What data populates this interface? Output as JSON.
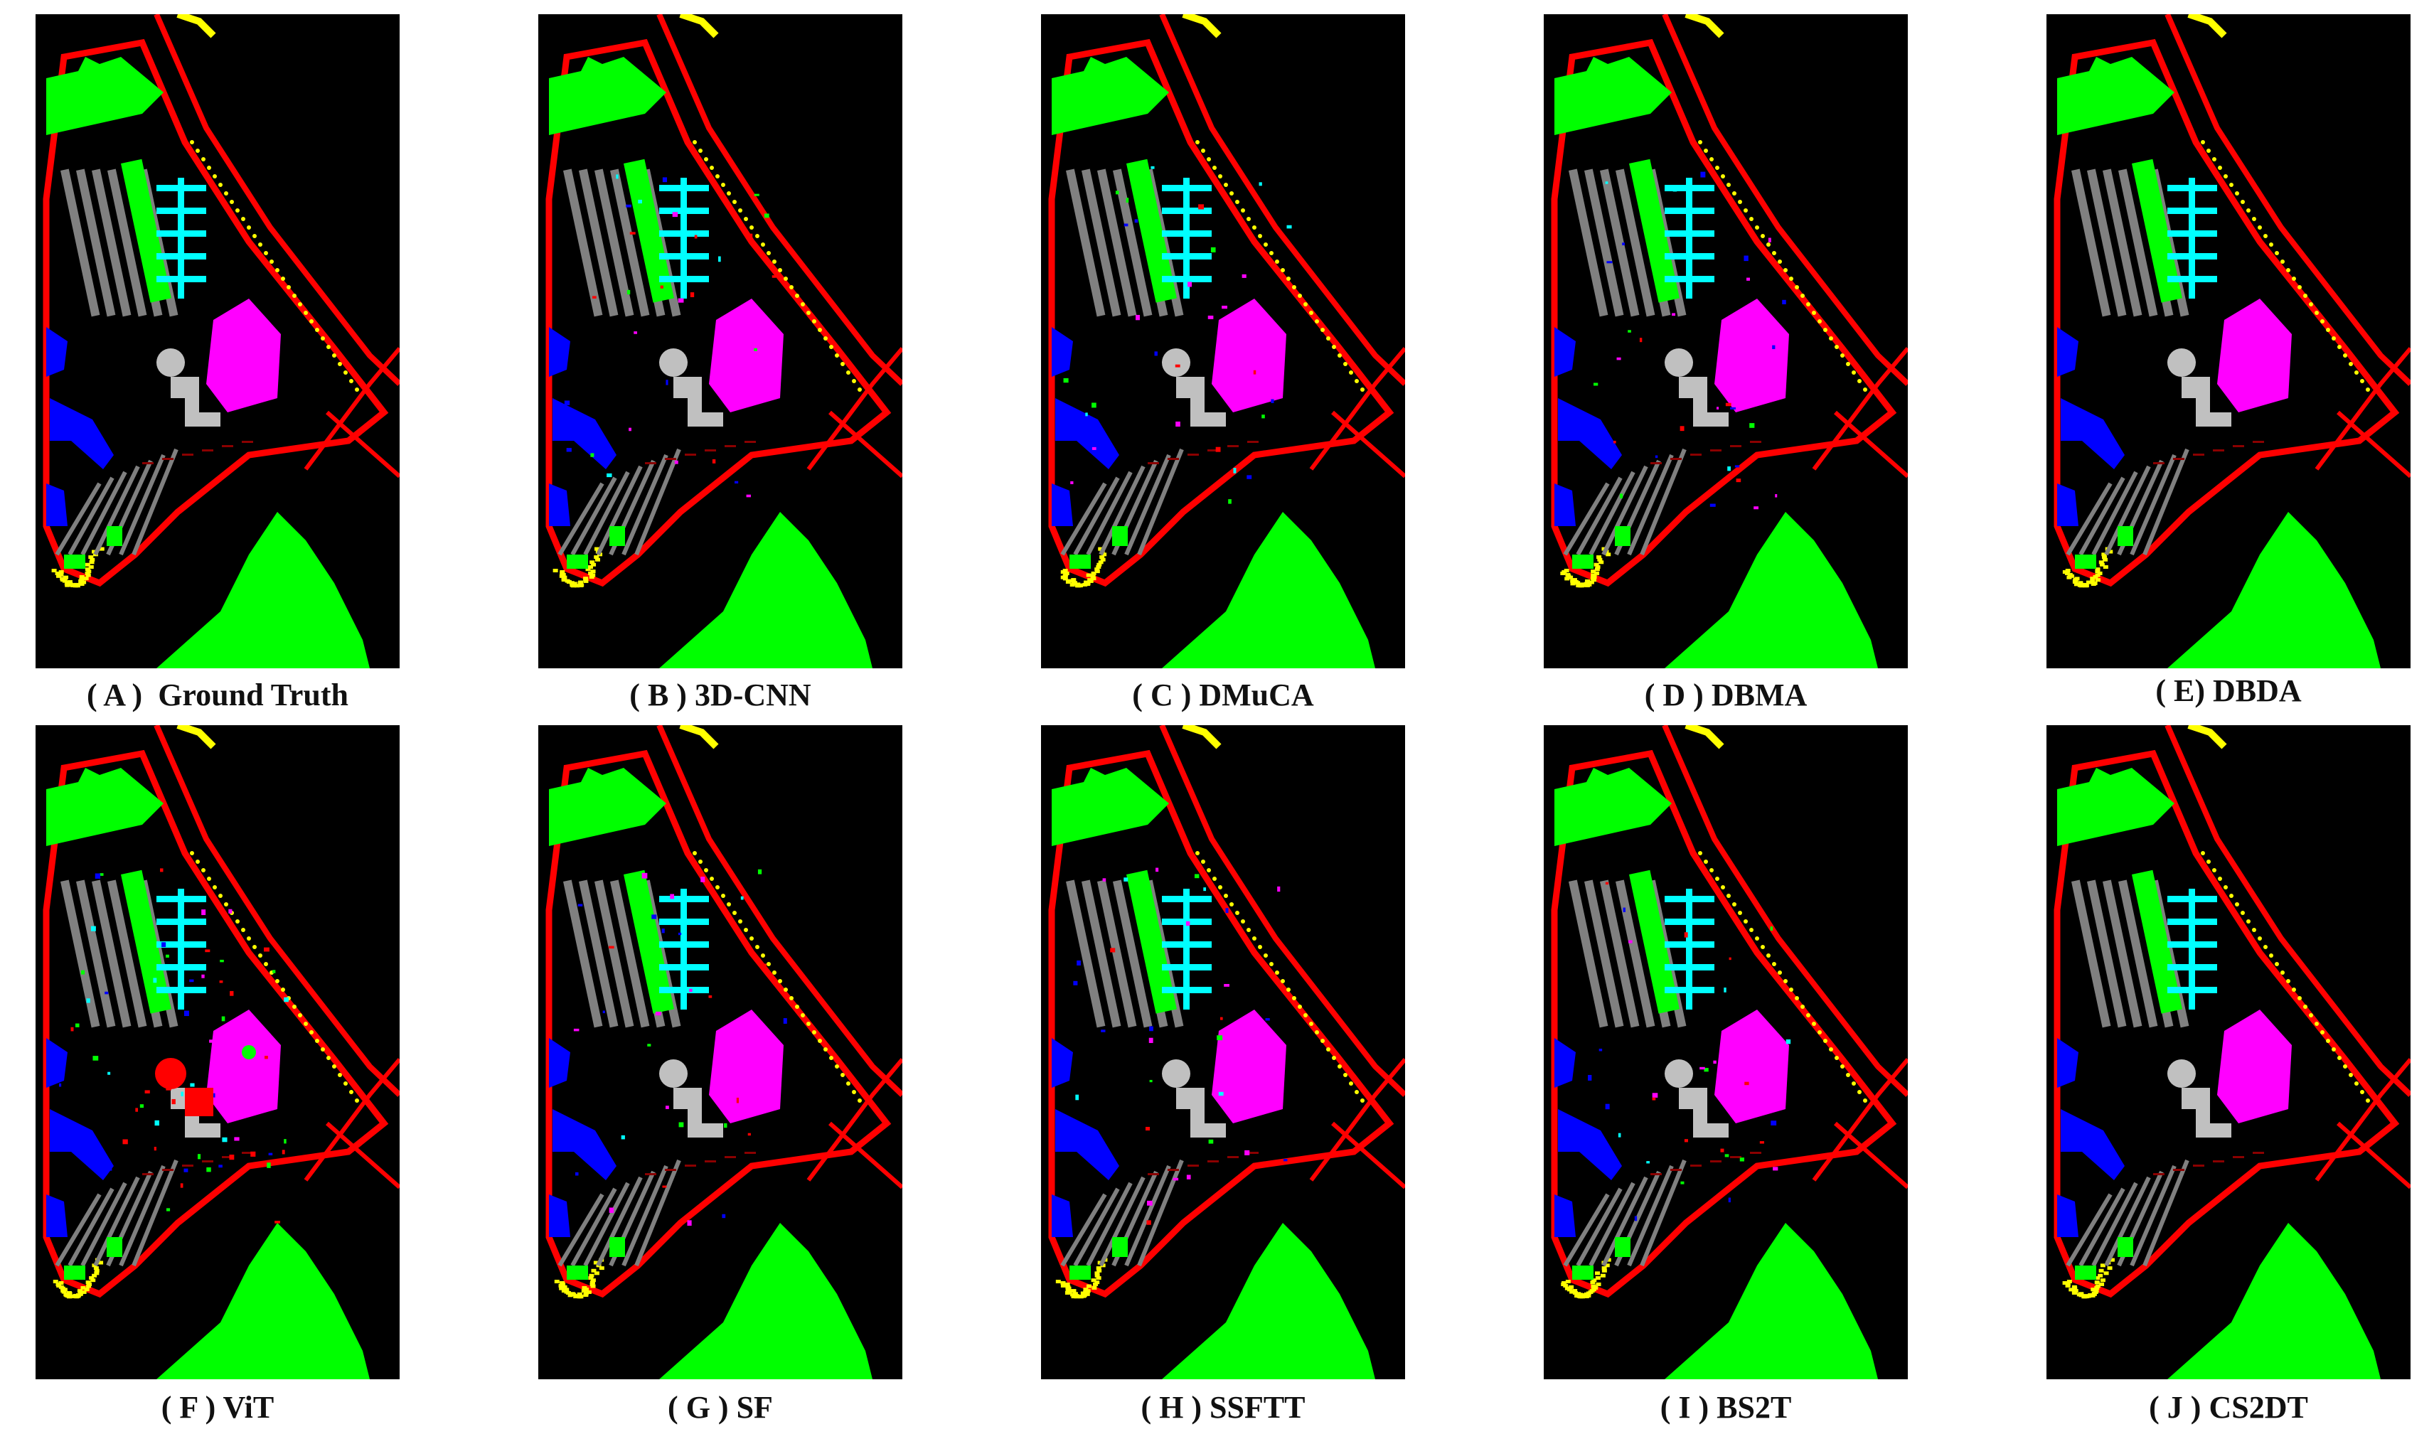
{
  "panels": [
    {
      "label": "( A )  Ground Truth",
      "variant": "gt"
    },
    {
      "label": "( B ) 3D-CNN",
      "variant": "noisy"
    },
    {
      "label": "( C ) DMuCA",
      "variant": "noisy"
    },
    {
      "label": "( D ) DBMA",
      "variant": "noisy"
    },
    {
      "label": "( E) DBDA",
      "variant": "clean"
    },
    {
      "label": "( F ) ViT",
      "variant": "vit"
    },
    {
      "label": "( G ) SF",
      "variant": "noisy"
    },
    {
      "label": "( H ) SSFTT",
      "variant": "noisy"
    },
    {
      "label": "( I ) BS2T",
      "variant": "noisy"
    },
    {
      "label": "( J ) CS2DT",
      "variant": "clean"
    }
  ],
  "class_colors": {
    "background": "#000000",
    "roads": "#ff0000",
    "meadows": "#00ff00",
    "bricks": "#ffff00",
    "trees": "#00ffff",
    "roofs": "#ff00ff",
    "asphalt": "#c0c0c0",
    "gravel": "#808080",
    "soil": "#0000ff",
    "shadows": "#8b0000"
  }
}
